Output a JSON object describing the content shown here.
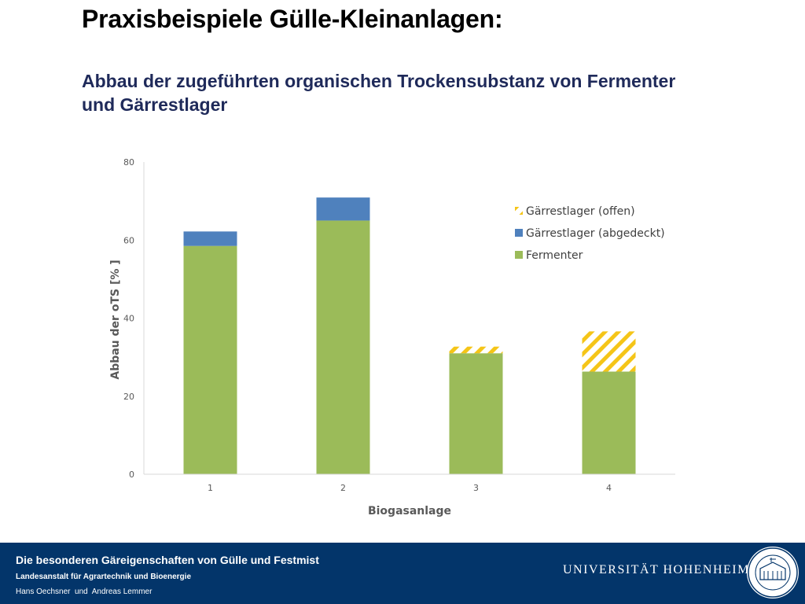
{
  "slide": {
    "title": "Praxisbeispiele Gülle-Kleinanlagen:",
    "subtitle": "Abbau der zugeführten organischen Trockensubstanz von Fermenter und Gärrestlager"
  },
  "chart_data": {
    "type": "bar",
    "stacked": true,
    "categories": [
      "1",
      "2",
      "3",
      "4"
    ],
    "series": [
      {
        "name": "Fermenter",
        "values": [
          58.5,
          65,
          31,
          26.3
        ],
        "color": "#9bbb59",
        "pattern": "solid"
      },
      {
        "name": "Gärrestlager (abgedeckt)",
        "values": [
          3.7,
          5.9,
          0,
          0
        ],
        "color": "#4f81bd",
        "pattern": "solid"
      },
      {
        "name": "Gärrestlager (offen)",
        "values": [
          0,
          0,
          1.7,
          10.3
        ],
        "color": "#f5c518",
        "pattern": "hatched"
      }
    ],
    "xlabel": "Biogasanlage",
    "ylabel": "Abbau der oTS [% ]",
    "ylim": [
      0,
      80
    ],
    "yticks": [
      "0",
      "20",
      "40",
      "60",
      "80"
    ],
    "legend_position": "top-right",
    "legend": [
      "Gärrestlager (offen)",
      "Gärrestlager (abgedeckt)",
      "Fermenter"
    ]
  },
  "footer": {
    "title": "Die besonderen Gäreigenschaften von Gülle und Festmist",
    "institute": "Landesanstalt für Agrartechnik und Bioenergie",
    "authors": "Hans Oechsner  und  Andreas Lemmer",
    "university": "UNIVERSITÄT HOHENHEIM",
    "seal_text": "UNIVERSITÄT HOHENHEIM",
    "seal_year": "1818"
  }
}
